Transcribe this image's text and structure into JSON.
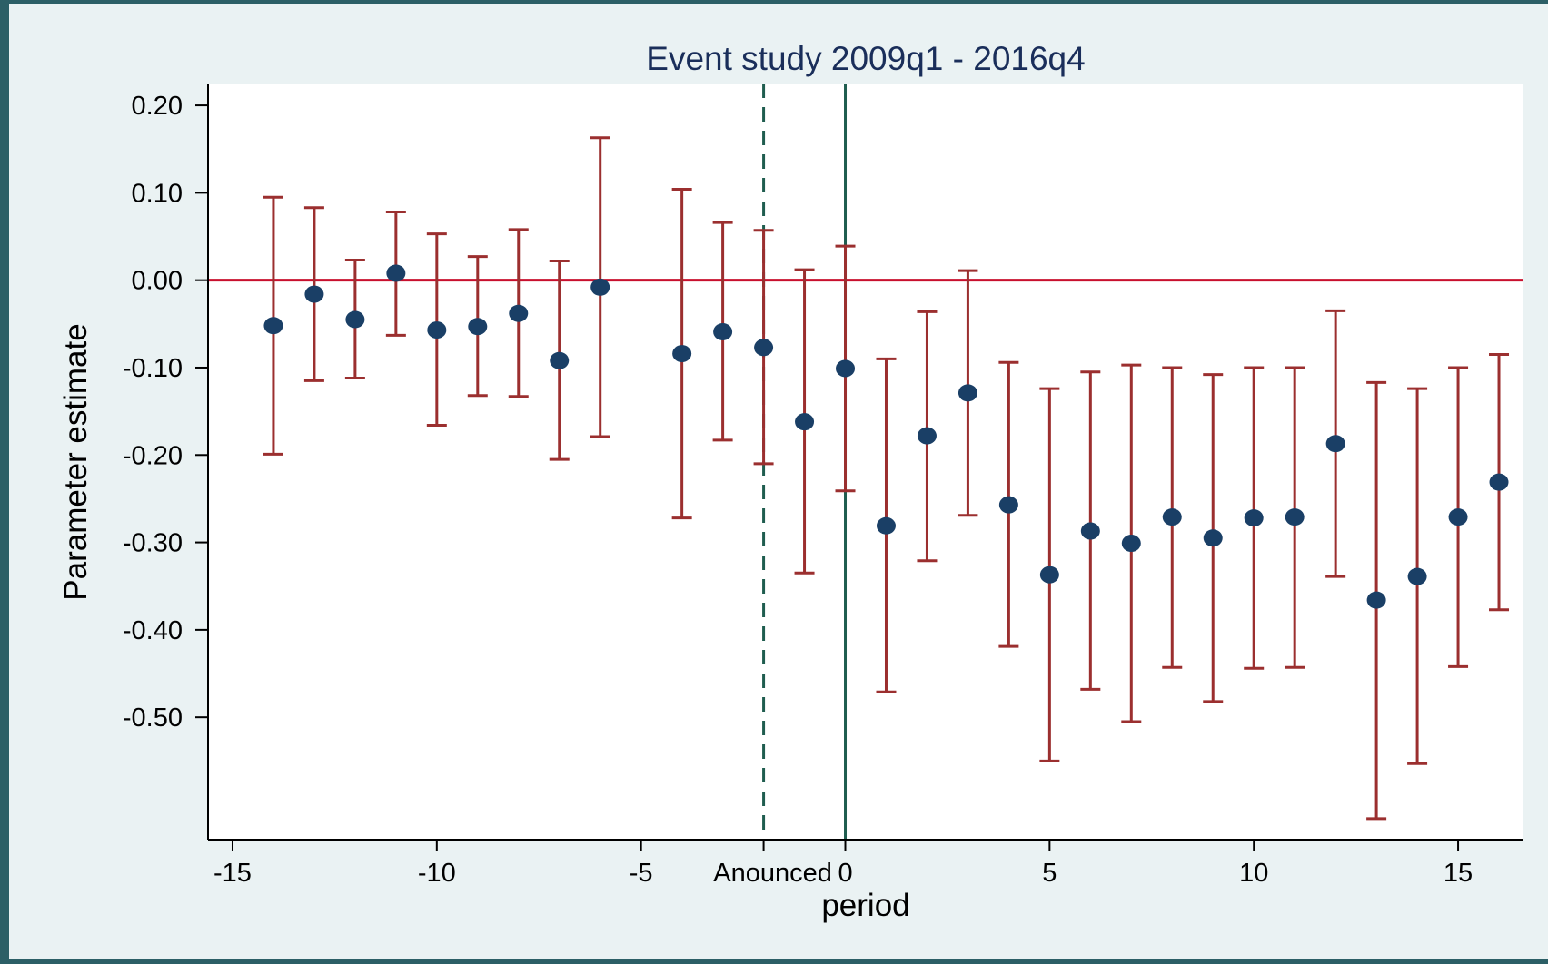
{
  "chart_data": {
    "type": "scatter",
    "title": "Event study 2009q1 - 2016q4",
    "xlabel": "period",
    "ylabel": "Parameter estimate",
    "xlim": [
      -15.6,
      16.6
    ],
    "ylim": [
      -0.64,
      0.225
    ],
    "x_ticks": [
      {
        "value": -15,
        "label": "-15"
      },
      {
        "value": -10,
        "label": "-10"
      },
      {
        "value": -5,
        "label": "-5"
      },
      {
        "value": -2,
        "label": "Anounced"
      },
      {
        "value": 0,
        "label": "0"
      },
      {
        "value": 5,
        "label": "5"
      },
      {
        "value": 10,
        "label": "10"
      },
      {
        "value": 15,
        "label": "15"
      }
    ],
    "y_ticks": [
      {
        "value": 0.2,
        "label": "0.20"
      },
      {
        "value": 0.1,
        "label": "0.10"
      },
      {
        "value": 0.0,
        "label": "0.00"
      },
      {
        "value": -0.1,
        "label": "-0.10"
      },
      {
        "value": -0.2,
        "label": "-0.20"
      },
      {
        "value": -0.3,
        "label": "-0.30"
      },
      {
        "value": -0.4,
        "label": "-0.40"
      },
      {
        "value": -0.5,
        "label": "-0.50"
      }
    ],
    "reference_lines": {
      "horizontal_zero": {
        "value": 0,
        "color": "#c8102e",
        "style": "solid"
      },
      "announcement": {
        "value": -2,
        "color": "#1f5d4f",
        "style": "dashed"
      },
      "treatment": {
        "value": 0,
        "color": "#1f5d4f",
        "style": "solid"
      }
    },
    "grid": false,
    "legend": "none",
    "colors": {
      "point": "#1a3f66",
      "error_bar": "#9b2f2f",
      "title": "#1a2e5a",
      "plot_background": "#ffffff",
      "outer_background": "#eaf2f3"
    },
    "series": [
      {
        "points": [
          {
            "x": -14,
            "y": -0.052,
            "lo": -0.199,
            "hi": 0.095
          },
          {
            "x": -13,
            "y": -0.016,
            "lo": -0.115,
            "hi": 0.083
          },
          {
            "x": -12,
            "y": -0.045,
            "lo": -0.112,
            "hi": 0.023
          },
          {
            "x": -11,
            "y": 0.008,
            "lo": -0.063,
            "hi": 0.078
          },
          {
            "x": -10,
            "y": -0.057,
            "lo": -0.166,
            "hi": 0.053
          },
          {
            "x": -9,
            "y": -0.053,
            "lo": -0.132,
            "hi": 0.027
          },
          {
            "x": -8,
            "y": -0.038,
            "lo": -0.133,
            "hi": 0.058
          },
          {
            "x": -7,
            "y": -0.092,
            "lo": -0.205,
            "hi": 0.022
          },
          {
            "x": -6,
            "y": -0.008,
            "lo": -0.179,
            "hi": 0.163
          },
          {
            "x": -4,
            "y": -0.084,
            "lo": -0.272,
            "hi": 0.104
          },
          {
            "x": -3,
            "y": -0.059,
            "lo": -0.183,
            "hi": 0.066
          },
          {
            "x": -2,
            "y": -0.077,
            "lo": -0.21,
            "hi": 0.057
          },
          {
            "x": -1,
            "y": -0.162,
            "lo": -0.335,
            "hi": 0.012
          },
          {
            "x": 0,
            "y": -0.101,
            "lo": -0.241,
            "hi": 0.039
          },
          {
            "x": 1,
            "y": -0.281,
            "lo": -0.471,
            "hi": -0.09
          },
          {
            "x": 2,
            "y": -0.178,
            "lo": -0.321,
            "hi": -0.036
          },
          {
            "x": 3,
            "y": -0.129,
            "lo": -0.269,
            "hi": 0.011
          },
          {
            "x": 4,
            "y": -0.257,
            "lo": -0.419,
            "hi": -0.094
          },
          {
            "x": 5,
            "y": -0.337,
            "lo": -0.55,
            "hi": -0.124
          },
          {
            "x": 6,
            "y": -0.287,
            "lo": -0.468,
            "hi": -0.105
          },
          {
            "x": 7,
            "y": -0.301,
            "lo": -0.505,
            "hi": -0.097
          },
          {
            "x": 8,
            "y": -0.271,
            "lo": -0.443,
            "hi": -0.1
          },
          {
            "x": 9,
            "y": -0.295,
            "lo": -0.482,
            "hi": -0.108
          },
          {
            "x": 10,
            "y": -0.272,
            "lo": -0.444,
            "hi": -0.1
          },
          {
            "x": 11,
            "y": -0.271,
            "lo": -0.443,
            "hi": -0.1
          },
          {
            "x": 12,
            "y": -0.187,
            "lo": -0.339,
            "hi": -0.035
          },
          {
            "x": 13,
            "y": -0.366,
            "lo": -0.616,
            "hi": -0.117
          },
          {
            "x": 14,
            "y": -0.339,
            "lo": -0.553,
            "hi": -0.124
          },
          {
            "x": 15,
            "y": -0.271,
            "lo": -0.442,
            "hi": -0.1
          },
          {
            "x": 16,
            "y": -0.231,
            "lo": -0.377,
            "hi": -0.085
          }
        ]
      }
    ]
  }
}
